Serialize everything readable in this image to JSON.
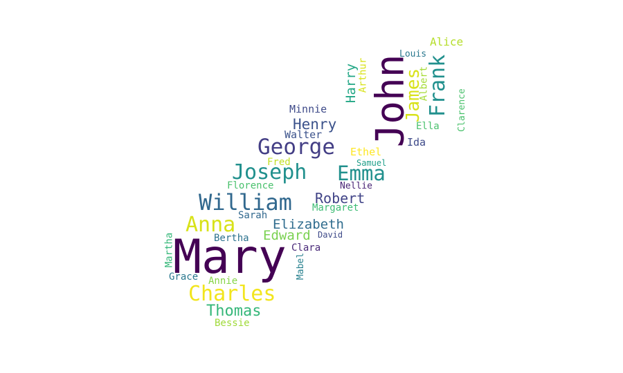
{
  "word_cloud": {
    "words": [
      {
        "text": "Mary",
        "color": "#440154"
      },
      {
        "text": "John",
        "color": "#440154"
      },
      {
        "text": "William",
        "color": "#31688e"
      },
      {
        "text": "Charles",
        "color": "#f2e51d"
      },
      {
        "text": "George",
        "color": "#433e85"
      },
      {
        "text": "Joseph",
        "color": "#21908d"
      },
      {
        "text": "Emma",
        "color": "#21908d"
      },
      {
        "text": "Anna",
        "color": "#d8e219"
      },
      {
        "text": "Frank",
        "color": "#21908d"
      },
      {
        "text": "James",
        "color": "#d8e219"
      },
      {
        "text": "Thomas",
        "color": "#35b779"
      },
      {
        "text": "Henry",
        "color": "#3b528b"
      },
      {
        "text": "Robert",
        "color": "#414487"
      },
      {
        "text": "Elizabeth",
        "color": "#2f6c8e"
      },
      {
        "text": "Harry",
        "color": "#21a685"
      },
      {
        "text": "Edward",
        "color": "#7ad151"
      },
      {
        "text": "Minnie",
        "color": "#3e4a89"
      },
      {
        "text": "Alice",
        "color": "#b5de2b"
      },
      {
        "text": "Arthur",
        "color": "#d8e219"
      },
      {
        "text": "Walter",
        "color": "#3b528b"
      },
      {
        "text": "Louis",
        "color": "#2a788e"
      },
      {
        "text": "Albert",
        "color": "#a5db36"
      },
      {
        "text": "Ella",
        "color": "#4ac16d"
      },
      {
        "text": "Clarence",
        "color": "#4ac16d"
      },
      {
        "text": "Ida",
        "color": "#3e4a89"
      },
      {
        "text": "Ethel",
        "color": "#fde725"
      },
      {
        "text": "Fred",
        "color": "#c2df23"
      },
      {
        "text": "Samuel",
        "color": "#1f9e89"
      },
      {
        "text": "Florence",
        "color": "#4ac16d"
      },
      {
        "text": "Nellie",
        "color": "#482475"
      },
      {
        "text": "Margaret",
        "color": "#3dbc74"
      },
      {
        "text": "Sarah",
        "color": "#31688e"
      },
      {
        "text": "Bertha",
        "color": "#2c728e"
      },
      {
        "text": "David",
        "color": "#3e4a89"
      },
      {
        "text": "Clara",
        "color": "#482878"
      },
      {
        "text": "Martha",
        "color": "#35b779"
      },
      {
        "text": "Mabel",
        "color": "#27808e"
      },
      {
        "text": "Grace",
        "color": "#2a788e"
      },
      {
        "text": "Annie",
        "color": "#86d549"
      },
      {
        "text": "Bessie",
        "color": "#a0da39"
      }
    ]
  }
}
